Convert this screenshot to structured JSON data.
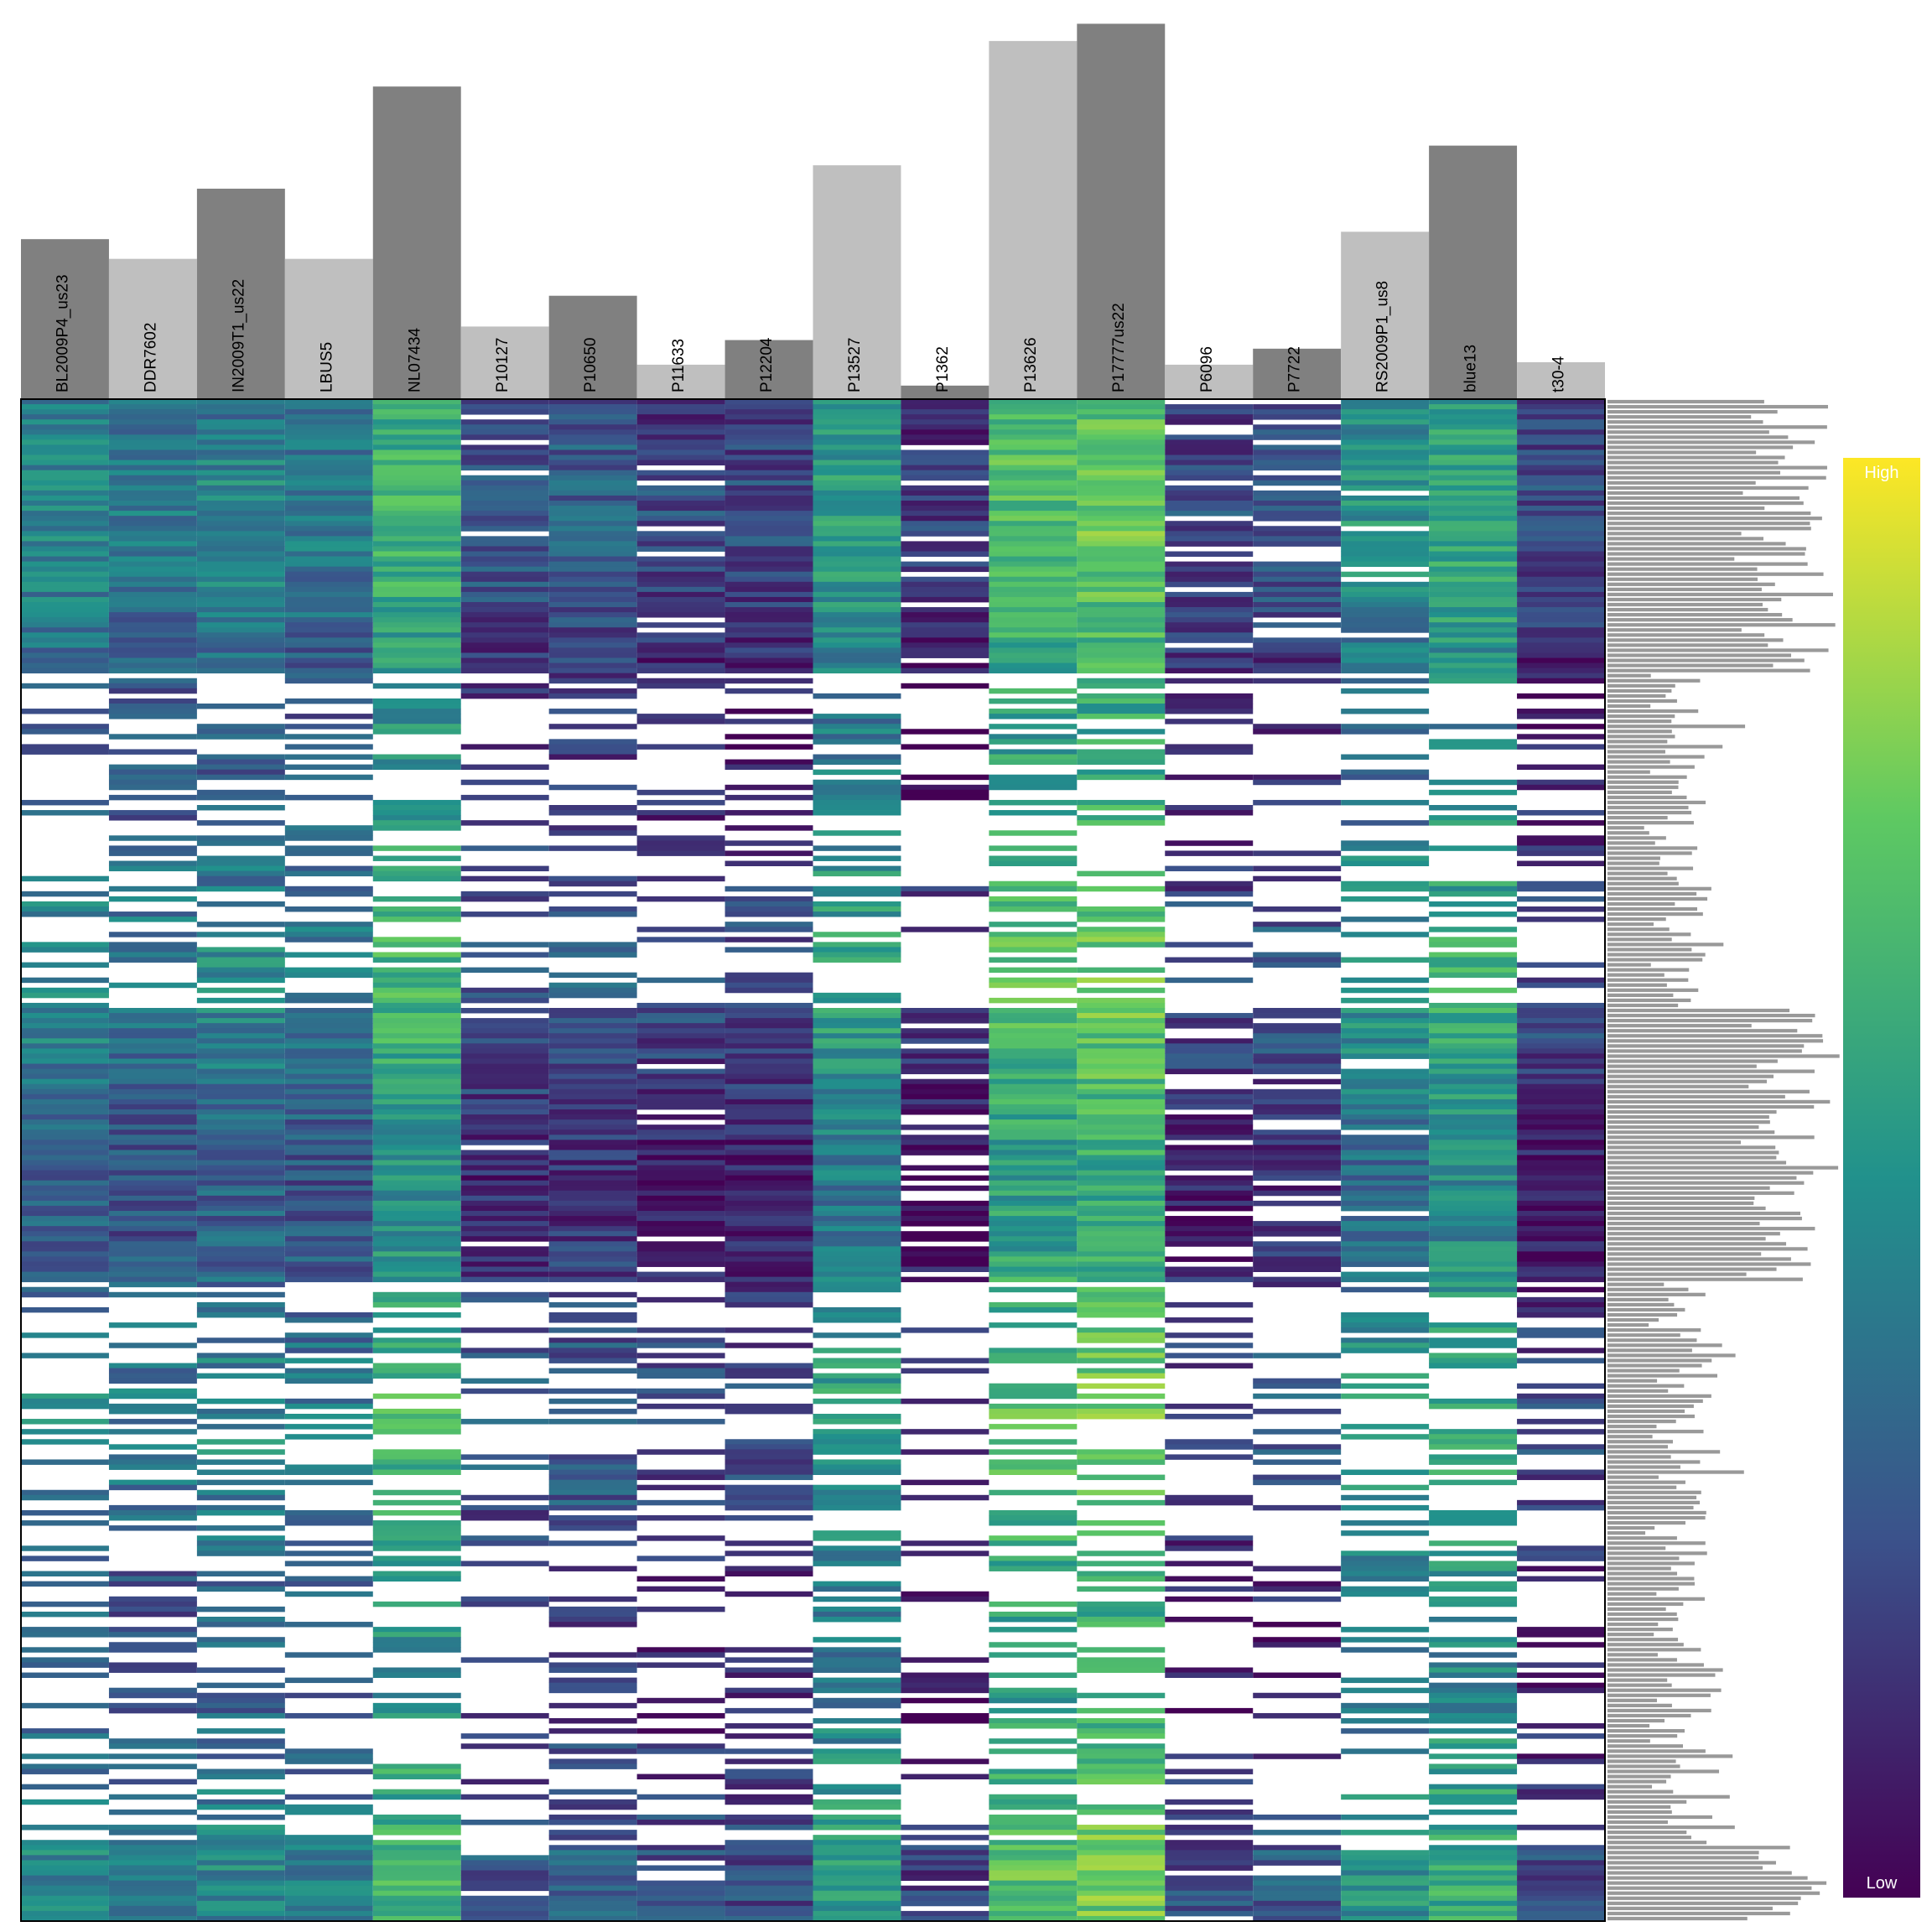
{
  "chart_data": {
    "type": "heatmap",
    "title": "",
    "columns": [
      "BL2009P4_us23",
      "DDR7602",
      "IN2009T1_us22",
      "LBUS5",
      "NL07434",
      "P10127",
      "P10650",
      "P11633",
      "P12204",
      "P13527",
      "P1362",
      "P13626",
      "P17777us22",
      "P6096",
      "P7722",
      "RS2009P1_us8",
      "blue13",
      "t30-4"
    ],
    "column_bar_values": [
      130,
      114,
      171,
      114,
      254,
      59,
      84,
      28,
      48,
      190,
      11,
      291,
      305,
      28,
      41,
      136,
      206,
      30
    ],
    "column_bar_colors": [
      "#808080",
      "#bfbfbf",
      "#808080",
      "#bfbfbf",
      "#808080",
      "#bfbfbf",
      "#808080",
      "#bfbfbf",
      "#808080",
      "#bfbfbf",
      "#808080",
      "#bfbfbf",
      "#808080",
      "#bfbfbf",
      "#808080",
      "#bfbfbf",
      "#808080",
      "#bfbfbf"
    ],
    "column_mean_level": [
      0.3,
      0.25,
      0.3,
      0.25,
      0.5,
      0.12,
      0.15,
      0.08,
      0.08,
      0.4,
      0.03,
      0.55,
      0.6,
      0.08,
      0.12,
      0.35,
      0.45,
      0.08
    ],
    "column_present_fraction": [
      0.55,
      0.6,
      0.75,
      0.6,
      0.7,
      0.45,
      0.7,
      0.4,
      0.55,
      0.75,
      0.3,
      0.8,
      0.8,
      0.4,
      0.35,
      0.45,
      0.7,
      0.55
    ],
    "row_count": 300,
    "row_dense_blocks": [
      [
        0,
        0.18
      ],
      [
        0.4,
        0.58
      ],
      [
        0.95,
        1.0
      ]
    ],
    "missing_color": "#ffffff",
    "colorscale": "viridis",
    "colorbar": {
      "high_label": "High",
      "low_label": "Low"
    },
    "row_bar_color": "#999999"
  }
}
